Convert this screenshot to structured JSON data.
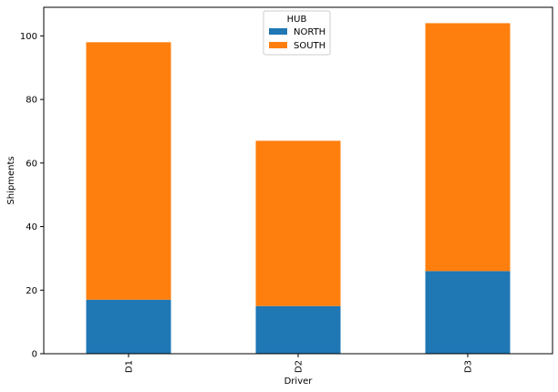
{
  "chart_data": {
    "type": "bar",
    "stacked": true,
    "categories": [
      "D1",
      "D2",
      "D3"
    ],
    "series": [
      {
        "name": "NORTH",
        "values": [
          17,
          15,
          26
        ],
        "color": "#1f77b4"
      },
      {
        "name": "SOUTH",
        "values": [
          81,
          52,
          78
        ],
        "color": "#ff7f0e"
      }
    ],
    "xlabel": "Driver",
    "ylabel": "Shipments",
    "ylim": [
      0,
      109
    ],
    "yticks": [
      0,
      20,
      40,
      60,
      80,
      100
    ],
    "legend": {
      "title": "HUB",
      "position": "top-center"
    },
    "grid": false
  }
}
